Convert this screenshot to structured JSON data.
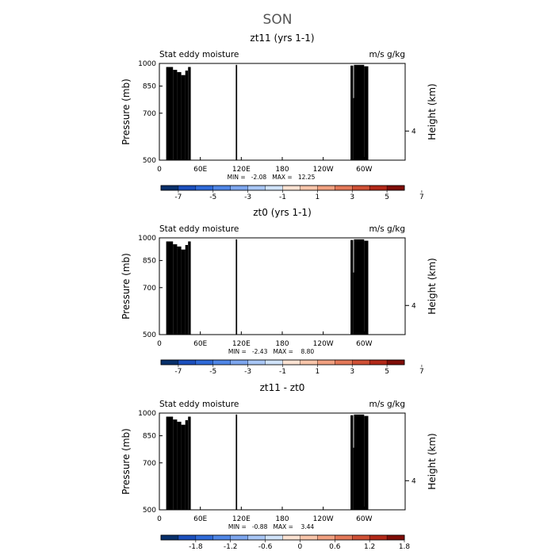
{
  "suptitle": "SON",
  "colors": {
    "levels_main": [
      "#08306b",
      "#1b4fbd",
      "#2f6ad8",
      "#4f86e6",
      "#7da6ee",
      "#a8c6f5",
      "#d0e3fa",
      "#fbe2d2",
      "#f8c5aa",
      "#f0a080",
      "#e37858",
      "#cf5035",
      "#b22818",
      "#7f0d07"
    ],
    "terrain": "#000000",
    "frame": "#000000"
  },
  "chart_data": [
    {
      "type": "heatmap",
      "title": "zt11 (yrs 1-1)",
      "left_label": "Stat eddy moisture",
      "right_label": "m/s g/kg",
      "ylabel": "Pressure (mb)",
      "ylabel_right": "Height (km)",
      "x_ticks": [
        "0",
        "60E",
        "120E",
        "180",
        "120W",
        "60W"
      ],
      "x_tick_values": [
        0,
        60,
        120,
        180,
        240,
        300
      ],
      "xlim": [
        0,
        360
      ],
      "y_ticks": [
        "500",
        "700",
        "850",
        "1000"
      ],
      "y_tick_values": [
        500,
        700,
        850,
        1000
      ],
      "ylim": [
        1000,
        500
      ],
      "right_ticks": [
        "4"
      ],
      "right_tick_pressure": [
        616
      ],
      "stats": "MIN =   -2.08   MAX =   12.25",
      "colorbar_labels": [
        "-7",
        "-5",
        "-3",
        "-1",
        "1",
        "3",
        "5",
        "7"
      ],
      "pattern": "base",
      "seed": 11
    },
    {
      "type": "heatmap",
      "title": "zt0 (yrs 1-1)",
      "left_label": "Stat eddy moisture",
      "right_label": "m/s g/kg",
      "ylabel": "Pressure (mb)",
      "ylabel_right": "Height (km)",
      "x_ticks": [
        "0",
        "60E",
        "120E",
        "180",
        "120W",
        "60W"
      ],
      "x_tick_values": [
        0,
        60,
        120,
        180,
        240,
        300
      ],
      "xlim": [
        0,
        360
      ],
      "y_ticks": [
        "500",
        "700",
        "850",
        "1000"
      ],
      "y_tick_values": [
        500,
        700,
        850,
        1000
      ],
      "ylim": [
        1000,
        500
      ],
      "right_ticks": [
        "4"
      ],
      "right_tick_pressure": [
        616
      ],
      "stats": "MIN =   -2.43   MAX =    8.80",
      "colorbar_labels": [
        "-7",
        "-5",
        "-3",
        "-1",
        "1",
        "3",
        "5",
        "7"
      ],
      "pattern": "base",
      "seed": 7
    },
    {
      "type": "heatmap",
      "title": "zt11 - zt0",
      "left_label": "Stat eddy moisture",
      "right_label": "m/s g/kg",
      "ylabel": "Pressure (mb)",
      "ylabel_right": "Height (km)",
      "x_ticks": [
        "0",
        "60E",
        "120E",
        "180",
        "120W",
        "60W"
      ],
      "x_tick_values": [
        0,
        60,
        120,
        180,
        240,
        300
      ],
      "xlim": [
        0,
        360
      ],
      "y_ticks": [
        "500",
        "700",
        "850",
        "1000"
      ],
      "y_tick_values": [
        500,
        700,
        850,
        1000
      ],
      "ylim": [
        1000,
        500
      ],
      "right_ticks": [
        "4"
      ],
      "right_tick_pressure": [
        616
      ],
      "stats": "MIN =   -0.88   MAX =    3.44",
      "colorbar_labels": [
        "-1.8",
        "-1.2",
        "-0.6",
        "0",
        "0.6",
        "1.2",
        "1.8"
      ],
      "pattern": "diff",
      "seed": 3
    }
  ]
}
